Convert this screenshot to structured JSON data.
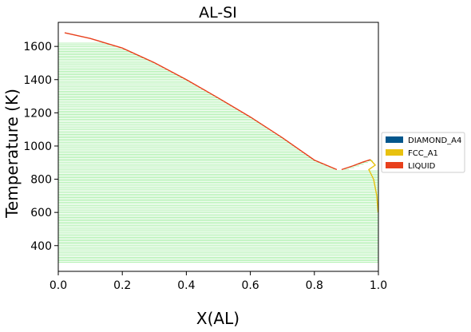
{
  "chart_data": {
    "type": "line",
    "title": "AL-SI",
    "xlabel": "X(AL)",
    "ylabel": "Temperature (K)",
    "xlim": [
      0.0,
      1.0
    ],
    "ylim": [
      245,
      1745
    ],
    "xticks": [
      0.0,
      0.2,
      0.4,
      0.6,
      0.8,
      1.0
    ],
    "xtick_labels": [
      "0.0",
      "0.2",
      "0.4",
      "0.6",
      "0.8",
      "1.0"
    ],
    "yticks": [
      400,
      600,
      800,
      1000,
      1200,
      1400,
      1600
    ],
    "ytick_labels": [
      "400",
      "600",
      "800",
      "1000",
      "1200",
      "1400",
      "1600"
    ],
    "legend": {
      "position": "right",
      "entries": [
        {
          "label": "DIAMOND_A4",
          "color": "#02568c"
        },
        {
          "label": "FCC_A1",
          "color": "#e8c10f"
        },
        {
          "label": "LIQUID",
          "color": "#e8401c"
        }
      ]
    },
    "tie_lines": {
      "color": "#78e678",
      "t_min": 300,
      "t_max": 1620,
      "t_step": 10
    },
    "series": [
      {
        "phase_boundary": "liquidus-si",
        "color": "#e8401c",
        "x": [
          0.02,
          0.1,
          0.2,
          0.3,
          0.4,
          0.5,
          0.6,
          0.7,
          0.8,
          0.87
        ],
        "y": [
          1682,
          1648,
          1590,
          1502,
          1400,
          1289,
          1175,
          1050,
          915,
          858
        ]
      },
      {
        "phase_boundary": "liquidus-al",
        "color": "#e8401c",
        "x": [
          0.885,
          0.92,
          0.95,
          0.975
        ],
        "y": [
          858,
          880,
          902,
          918
        ]
      },
      {
        "phase_boundary": "fcc-solvus",
        "color": "#e8c10f",
        "x": [
          0.975,
          0.99,
          0.97,
          0.985,
          0.995,
          0.999
        ],
        "y": [
          918,
          885,
          858,
          800,
          700,
          600
        ]
      }
    ]
  }
}
